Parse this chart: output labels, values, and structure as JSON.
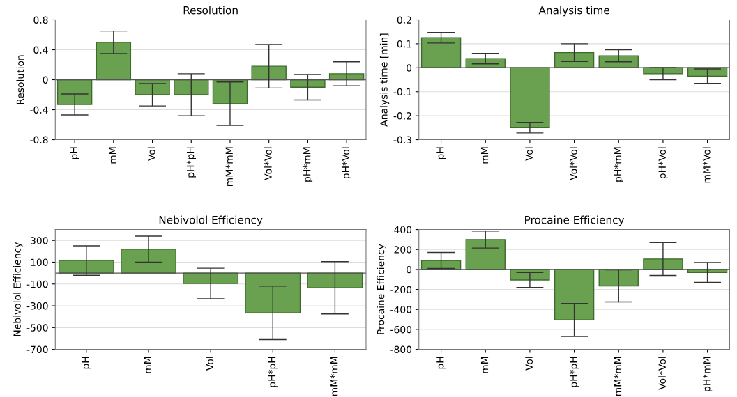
{
  "chart_data": [
    {
      "type": "bar",
      "title": "Resolution",
      "ylabel": "Resolution",
      "categories": [
        "pH",
        "mM",
        "Vol",
        "pH*pH",
        "mM*mM",
        "Vol*Vol",
        "pH*mM",
        "pH*Vol"
      ],
      "values": [
        -0.33,
        0.5,
        -0.2,
        -0.2,
        -0.32,
        0.18,
        -0.1,
        0.08
      ],
      "errors": [
        0.14,
        0.15,
        0.15,
        0.28,
        0.29,
        0.29,
        0.17,
        0.16
      ],
      "color": "#6aa150",
      "ylim": [
        -0.8,
        0.8
      ],
      "yticks": [
        -0.8,
        -0.4,
        0,
        0.4,
        0.8
      ],
      "grid": "y"
    },
    {
      "type": "bar",
      "title": "Analysis time",
      "ylabel": "Analysis time [min]",
      "categories": [
        "pH",
        "mM",
        "Vol",
        "Vol*Vol",
        "pH*mM",
        "pH*Vol",
        "mM*Vol"
      ],
      "values": [
        0.125,
        0.038,
        -0.25,
        0.063,
        0.05,
        -0.025,
        -0.035
      ],
      "errors": [
        0.022,
        0.022,
        0.022,
        0.037,
        0.025,
        0.025,
        0.03
      ],
      "color": "#6aa150",
      "ylim": [
        -0.3,
        0.2
      ],
      "yticks": [
        -0.3,
        -0.2,
        -0.1,
        0,
        0.1,
        0.2
      ],
      "grid": "y"
    },
    {
      "type": "bar",
      "title": "Nebivolol Efficiency",
      "ylabel": "Nebivolol Efficiency",
      "categories": [
        "pH",
        "mM",
        "Vol",
        "pH*pH",
        "mM*mM"
      ],
      "values": [
        115,
        220,
        -95,
        -365,
        -135
      ],
      "errors": [
        135,
        120,
        140,
        245,
        240
      ],
      "color": "#6aa150",
      "ylim": [
        -700,
        400
      ],
      "yticks": [
        -700,
        -500,
        -300,
        -100,
        100,
        300
      ],
      "grid": "y"
    },
    {
      "type": "bar",
      "title": "Procaine Efficiency",
      "ylabel": "Procaine Efficiency",
      "categories": [
        "pH",
        "mM",
        "Vol",
        "pH*pH",
        "mM*mM",
        "Vol*Vol",
        "pH*mM"
      ],
      "values": [
        90,
        300,
        -105,
        -505,
        -165,
        105,
        -30
      ],
      "errors": [
        80,
        85,
        75,
        165,
        160,
        165,
        100
      ],
      "color": "#6aa150",
      "ylim": [
        -800,
        400
      ],
      "yticks": [
        -800,
        -600,
        -400,
        -200,
        0,
        200,
        400
      ],
      "grid": "y"
    }
  ]
}
